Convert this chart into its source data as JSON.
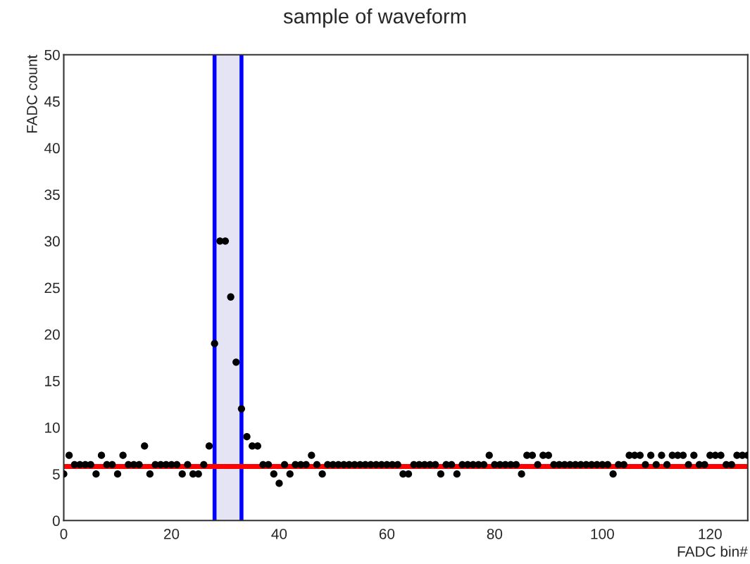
{
  "chart_data": {
    "type": "scatter",
    "title": "sample of waveform",
    "xlabel": "FADC bin#",
    "ylabel": "FADC count",
    "x": [
      0,
      1,
      2,
      3,
      4,
      5,
      6,
      7,
      8,
      9,
      10,
      11,
      12,
      13,
      14,
      15,
      16,
      17,
      18,
      19,
      20,
      21,
      22,
      23,
      24,
      25,
      26,
      27,
      28,
      29,
      30,
      31,
      32,
      33,
      34,
      35,
      36,
      37,
      38,
      39,
      40,
      41,
      42,
      43,
      44,
      45,
      46,
      47,
      48,
      49,
      50,
      51,
      52,
      53,
      54,
      55,
      56,
      57,
      58,
      59,
      60,
      61,
      62,
      63,
      64,
      65,
      66,
      67,
      68,
      69,
      70,
      71,
      72,
      73,
      74,
      75,
      76,
      77,
      78,
      79,
      80,
      81,
      82,
      83,
      84,
      85,
      86,
      87,
      88,
      89,
      90,
      91,
      92,
      93,
      94,
      95,
      96,
      97,
      98,
      99,
      100,
      101,
      102,
      103,
      104,
      105,
      106,
      107,
      108,
      109,
      110,
      111,
      112,
      113,
      114,
      115,
      116,
      117,
      118,
      119,
      120,
      121,
      122,
      123,
      124,
      125,
      126,
      127
    ],
    "series": [
      {
        "color": "#000000",
        "values": [
          5,
          7,
          6,
          6,
          6,
          6,
          5,
          7,
          6,
          6,
          5,
          7,
          6,
          6,
          6,
          8,
          5,
          6,
          6,
          6,
          6,
          6,
          5,
          6,
          5,
          5,
          6,
          8,
          19,
          30,
          30,
          24,
          17,
          12,
          9,
          8,
          8,
          6,
          6,
          5,
          4,
          6,
          5,
          6,
          6,
          6,
          7,
          6,
          5,
          6,
          6,
          6,
          6,
          6,
          6,
          6,
          6,
          6,
          6,
          6,
          6,
          6,
          6,
          5,
          5,
          6,
          6,
          6,
          6,
          6,
          5,
          6,
          6,
          5,
          6,
          6,
          6,
          6,
          6,
          7,
          6,
          6,
          6,
          6,
          6,
          5,
          7,
          7,
          6,
          7,
          7,
          6,
          6,
          6,
          6,
          6,
          6,
          6,
          6,
          6,
          6,
          6,
          5,
          6,
          6,
          7,
          7,
          7,
          6,
          7,
          6,
          7,
          6,
          7,
          7,
          7,
          6,
          7,
          6,
          6,
          7,
          7,
          7,
          6,
          6,
          7,
          7,
          7
        ]
      }
    ],
    "marker": "circle",
    "xlim": [
      0,
      127
    ],
    "xticks": [
      0,
      20,
      40,
      60,
      80,
      100,
      120
    ],
    "ylim": [
      0,
      50
    ],
    "yticks": [
      0,
      5,
      10,
      15,
      20,
      25,
      30,
      35,
      40,
      45,
      50
    ],
    "bands": [
      {
        "axis": "x",
        "from": 28,
        "to": 33,
        "color": "#e4e4f4"
      }
    ],
    "ref_lines": [
      {
        "axis": "x",
        "value": 28,
        "color": "#0000ff"
      },
      {
        "axis": "x",
        "value": 33,
        "color": "#0000ff"
      },
      {
        "axis": "y",
        "value": 5.8,
        "color": "#ff0000"
      }
    ],
    "grid": false,
    "legend": false
  }
}
